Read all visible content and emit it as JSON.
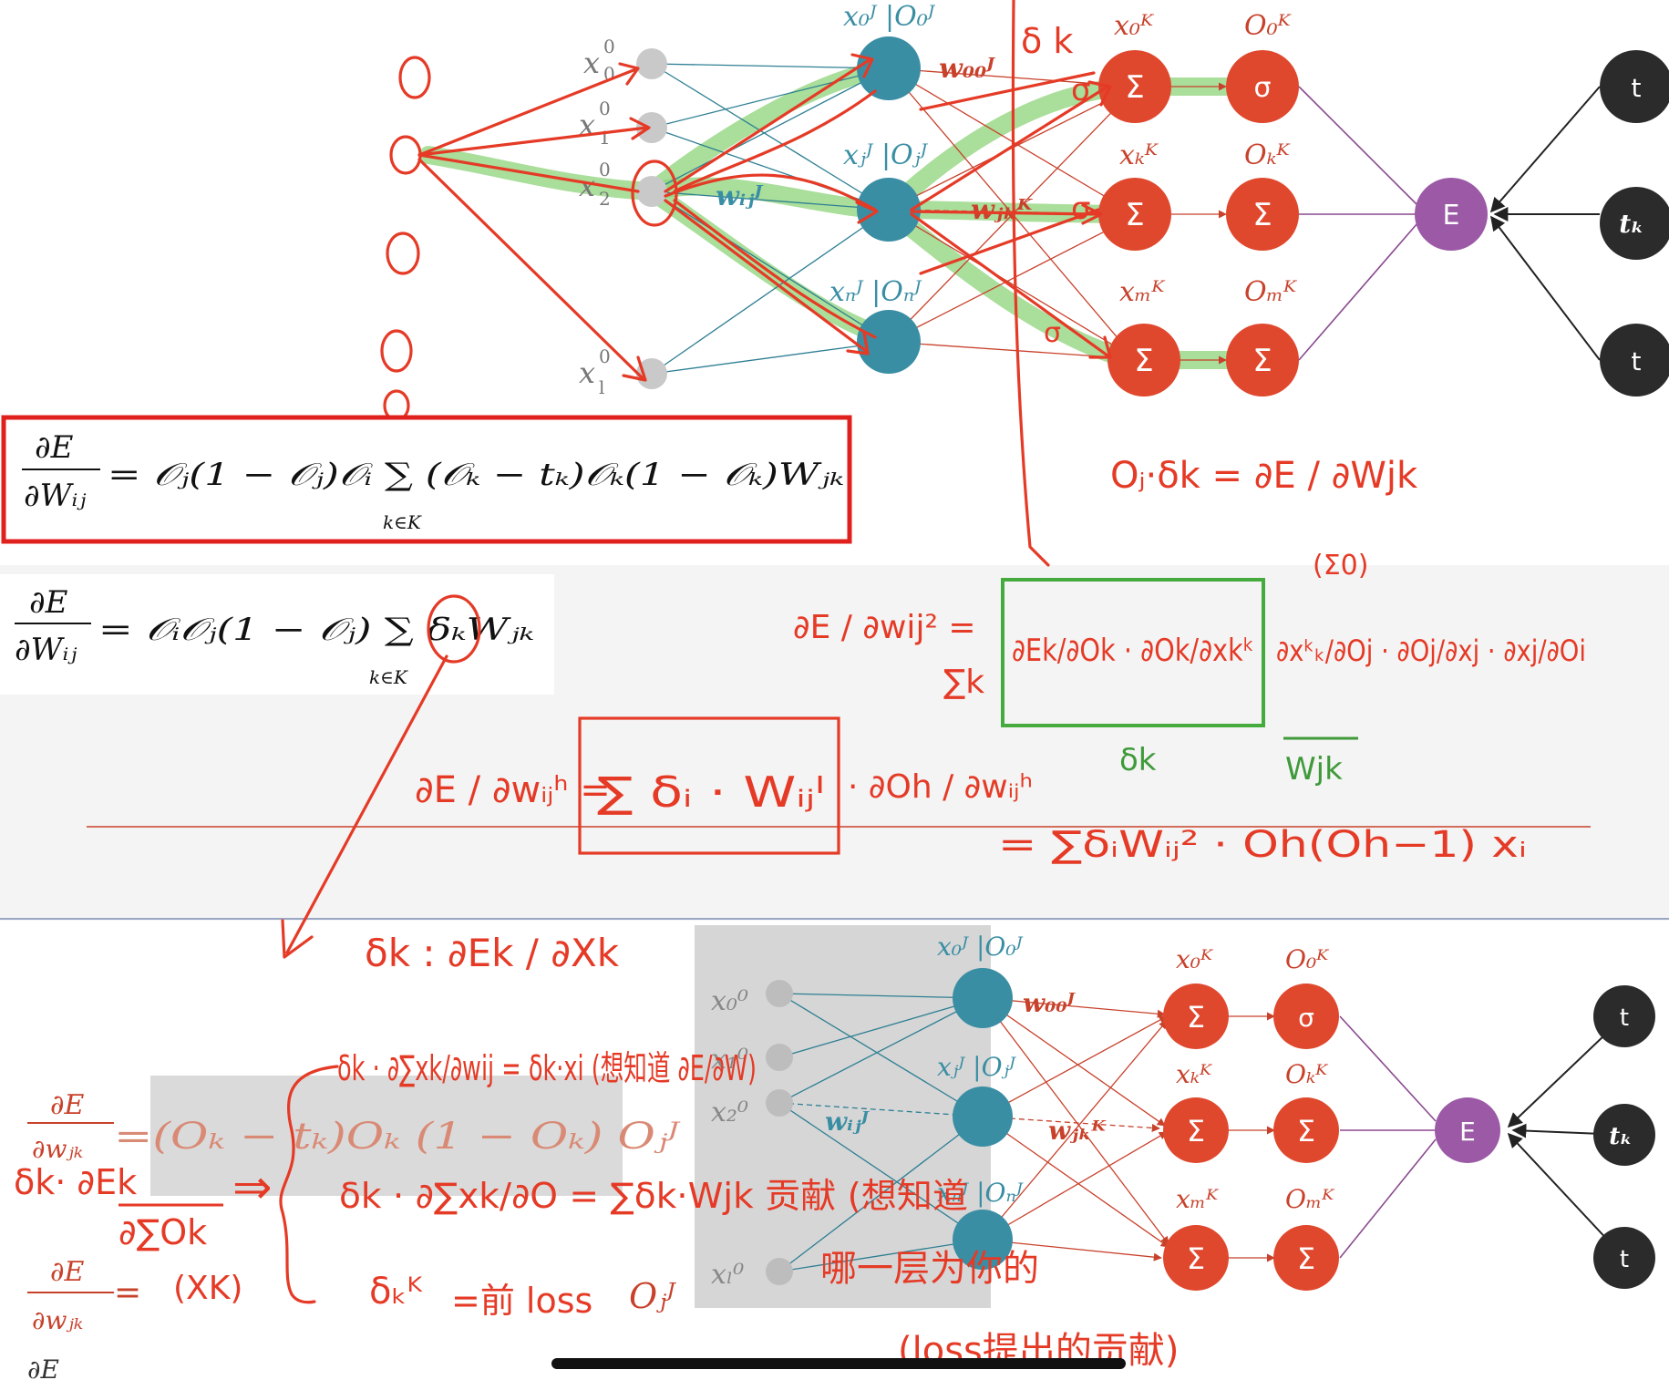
{
  "colors": {
    "input_node": "#c9c9c9",
    "hidden_node": "#3a8ea4",
    "output_node": "#e0482e",
    "error_node": "#9b59a6",
    "target_node": "#2b2b2b",
    "ink": "#e53a26",
    "highlight": "#8ed37a",
    "green_ink": "#3f9a3a",
    "box_border": "#e0201c"
  },
  "network_top": {
    "input_labels": [
      "x",
      "x",
      "x",
      "x"
    ],
    "input_subs": [
      "0",
      "1",
      "2",
      "l"
    ],
    "input_sups": [
      "0",
      "0",
      "0",
      "0"
    ],
    "hidden_labels": [
      "x₀ᴶ |O₀ᴶ",
      "xⱼᴶ |Oⱼᴶ",
      "xₙᴶ |Oₙᴶ"
    ],
    "weight_00": "w₀₀ᴶ",
    "weight_ij": "wᵢⱼᴶ",
    "weight_jk": "wⱼₖᴷ",
    "sum_labels": [
      "x₀ᴷ",
      "xₖᴷ",
      "xₘᴷ"
    ],
    "out_labels": [
      "O₀ᴷ",
      "Oₖᴷ",
      "Oₘᴷ"
    ],
    "sum_symbols": [
      "Σ",
      "Σ",
      "Σ"
    ],
    "out_symbols": [
      "σ",
      "Σ",
      "Σ"
    ],
    "error_label": "E",
    "targets": [
      "t",
      "tₖ",
      "t"
    ]
  },
  "network_bottom": {
    "input_labels": [
      "x₀⁰",
      "x₁⁰",
      "x₂⁰",
      "xₗ⁰"
    ],
    "hidden_labels": [
      "x₀ᴶ |O₀ᴶ",
      "xⱼᴶ |Oⱼᴶ",
      "xₙᴶ |Oₙᴶ"
    ],
    "weight_00": "w₀₀ᴶ",
    "weight_ij": "wᵢⱼᴶ",
    "weight_jk": "wⱼₖᴷ",
    "sum_labels": [
      "x₀ᴷ",
      "xₖᴷ",
      "xₘᴷ"
    ],
    "out_labels": [
      "O₀ᴷ",
      "Oₖᴷ",
      "Oₘᴷ"
    ],
    "sum_symbols": [
      "Σ",
      "Σ",
      "Σ"
    ],
    "out_symbols": [
      "σ",
      "Σ",
      "Σ"
    ],
    "error_label": "E",
    "targets": [
      "t",
      "tₖ",
      "t"
    ]
  },
  "formulas": {
    "boxed_lhs_num": "∂E",
    "boxed_lhs_den": "∂Wᵢⱼ",
    "boxed_rhs": "= 𝒪ⱼ(1 − 𝒪ⱼ)𝒪ᵢ ∑ (𝒪ₖ − tₖ)𝒪ₖ(1 − 𝒪ₖ)Wⱼₖ",
    "boxed_sum_index": "k∈K",
    "second_lhs_num": "∂E",
    "second_lhs_den": "∂Wᵢⱼ",
    "second_rhs": "= 𝒪ᵢ𝒪ⱼ(1 − 𝒪ⱼ) ∑ δₖWⱼₖ",
    "second_sum_index": "k∈K",
    "jk_lhs_num": "∂E",
    "jk_lhs_den": "∂wⱼₖ",
    "jk_rhs": "=(Oₖ − tₖ)Oₖ (1 − Oₖ) Oⱼᴶ",
    "jk2_lhs_num": "∂E",
    "jk2_lhs_den": "∂wⱼₖ",
    "jk2_eq": "=",
    "bottom_cut": "∂E"
  },
  "handwriting": {
    "sigma": "σ",
    "delta_k": "δ k",
    "oj_delta": "Oⱼ·δk = ∂E / ∂Wjk",
    "sigma0": "(Σ0)",
    "chain_lhs": "∂E / ∂wij² =",
    "chain_sum": "∑k",
    "chain_box": "∂Ek/∂Ok · ∂Ok/∂xkᵏ",
    "chain_rest": "∂xᵏₖ/∂Oj · ∂Oj/∂xj · ∂xj/∂Oi",
    "green_delta": "δk",
    "green_w": "Wjk",
    "h_lhs": "∂E / ∂wᵢⱼʰ =",
    "h_box": "∑ δᵢ · Wᵢⱼᴵ",
    "h_rest": "· ∂Oh / ∂wᵢⱼʰ",
    "h_result": "= ∑δᵢWᵢⱼ² · Oh(Oh−1) xᵢ",
    "delta_def": "δk : ∂Ek / ∂Xk",
    "line1": "δk · ∂∑xk/∂wij = δk·xi (想知道 ∂E/∂W)",
    "line2": "δk · ∂∑xk/∂O = ∑δk·Wjk 贡献 (想知道",
    "line2b": "哪一层为你的",
    "line3": "δₖᴷ",
    "line3b": "=前 loss",
    "line3c": "Oⱼᴶ",
    "line4": "(loss提出的贡献)",
    "left_delta": "δk· ∂Ek",
    "left_den": "∂∑Ok",
    "left_xk": "(XK)",
    "arrow": "⇒"
  }
}
